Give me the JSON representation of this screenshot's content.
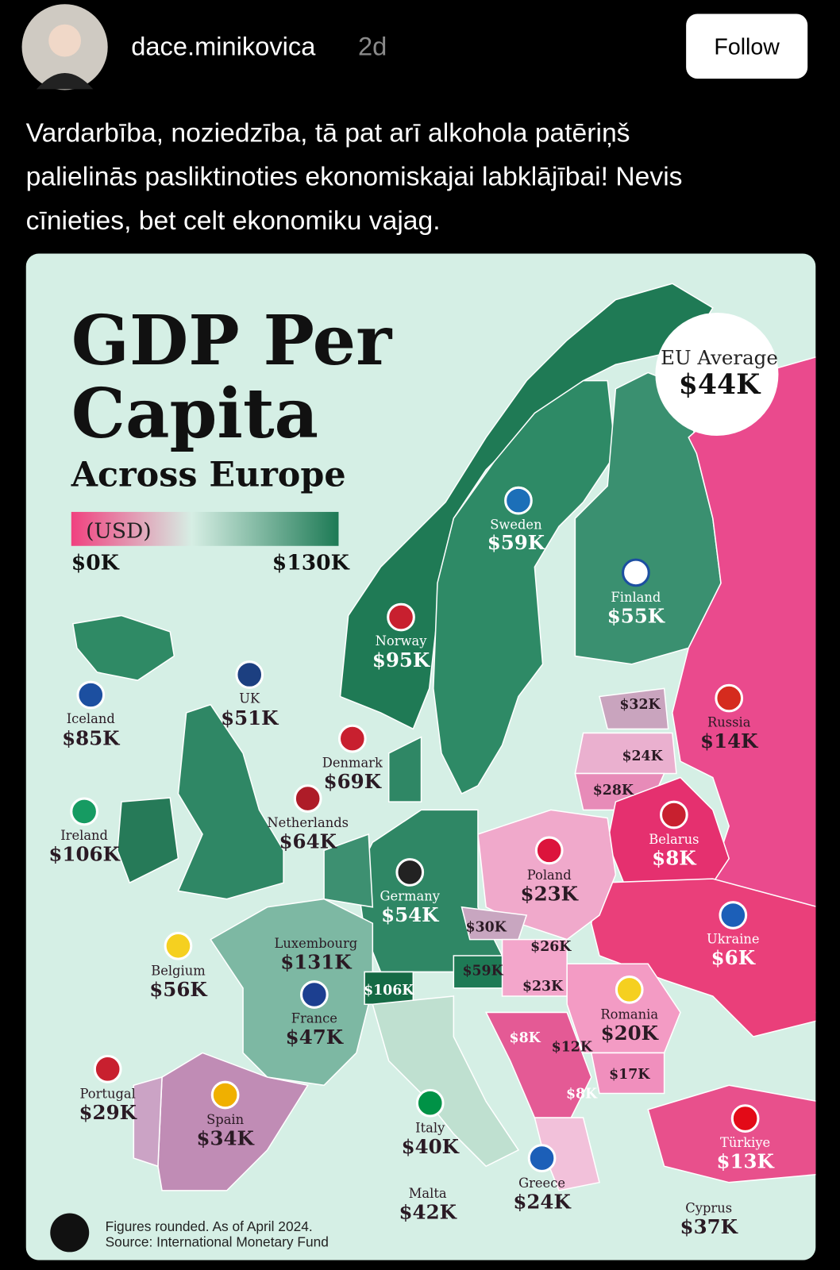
{
  "post": {
    "username": "dace.minikovica",
    "time": "2d",
    "follow": "Follow",
    "text_lines": [
      "Vardarbība, noziedzība, tā pat arī alkohola patēriņš",
      "palielinās pasliktinoties ekonomiskajai labklājībai! Nevis",
      "cīnieties, bet celt ekonomiku vajag."
    ]
  },
  "map": {
    "title_lines": [
      "GDP Per",
      "Capita"
    ],
    "subtitle": "Across Europe",
    "legend": {
      "unit": "(USD)",
      "min": "$0K",
      "max": "$130K"
    },
    "eu_average": {
      "label": "EU Average",
      "value": "$44K"
    },
    "countries": [
      {
        "name": "Sweden",
        "value": "$59K"
      },
      {
        "name": "Finland",
        "value": "$55K"
      },
      {
        "name": "Norway",
        "value": "$95K"
      },
      {
        "name": "Iceland",
        "value": "$85K"
      },
      {
        "name": "UK",
        "value": "$51K"
      },
      {
        "name": "Denmark",
        "value": "$69K"
      },
      {
        "name": "Netherlands",
        "value": "$64K"
      },
      {
        "name": "Ireland",
        "value": "$106K"
      },
      {
        "name": "Germany",
        "value": "$54K"
      },
      {
        "name": "Luxembourg",
        "value": "$131K"
      },
      {
        "name": "Belgium",
        "value": "$56K"
      },
      {
        "name": "France",
        "value": "$47K"
      },
      {
        "name": "Portugal",
        "value": "$29K"
      },
      {
        "name": "Spain",
        "value": "$34K"
      },
      {
        "name": "Italy",
        "value": "$40K"
      },
      {
        "name": "Malta",
        "value": "$42K"
      },
      {
        "name": "Greece",
        "value": "$24K"
      },
      {
        "name": "Cyprus",
        "value": "$37K"
      },
      {
        "name": "Türkiye",
        "value": "$13K"
      },
      {
        "name": "Romania",
        "value": "$20K"
      },
      {
        "name": "Poland",
        "value": "$23K"
      },
      {
        "name": "Belarus",
        "value": "$8K"
      },
      {
        "name": "Ukraine",
        "value": "$6K"
      },
      {
        "name": "Russia",
        "value": "$14K"
      }
    ],
    "unnamed_values": [
      "$32K",
      "$24K",
      "$28K",
      "$30K",
      "$26K",
      "$59K",
      "$106K",
      "$23K",
      "$8K",
      "$12K",
      "$17K",
      "$8K"
    ],
    "footnote": [
      "Figures rounded. As of April 2024.",
      "Source: International Monetary Fund"
    ]
  }
}
